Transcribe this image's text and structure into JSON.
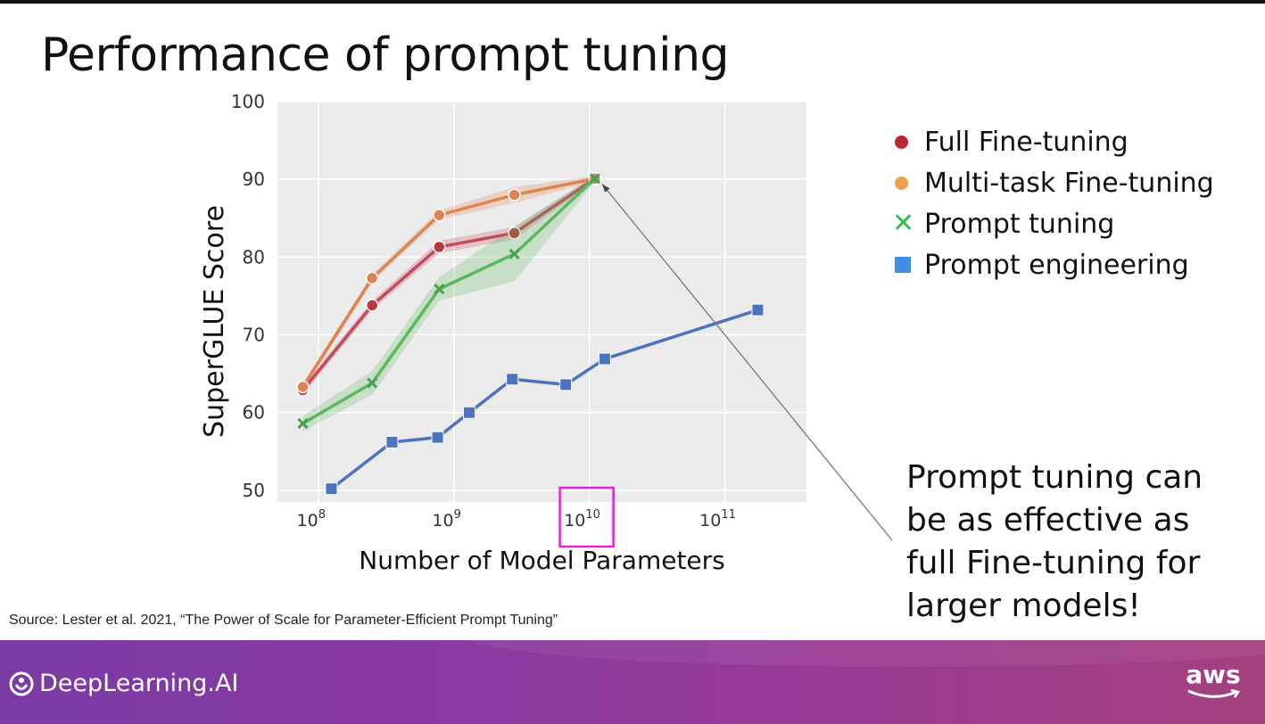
{
  "slide": {
    "title": "Performance of prompt tuning",
    "source": "Source:  Lester et al. 2021, “The Power of Scale for Parameter-Efficient Prompt Tuning”",
    "callout": "Prompt tuning can be as effective as full Fine-tuning for larger models!"
  },
  "footer": {
    "brand": "DeepLearning.AI",
    "aws": "aws"
  },
  "legend": [
    {
      "name": "Full Fine-tuning",
      "marker": "circle",
      "color": "#b8272f"
    },
    {
      "name": "Multi-task Fine-tuning",
      "marker": "circle",
      "color": "#f0a04b"
    },
    {
      "name": "Prompt tuning",
      "marker": "x",
      "color": "#2ebd4f"
    },
    {
      "name": "Prompt engineering",
      "marker": "square",
      "color": "#3d8ee6"
    }
  ],
  "chart_data": {
    "type": "line",
    "xlabel": "Number of Model Parameters",
    "ylabel": "SuperGLUE Score",
    "x_scale": "log",
    "xlim": [
      50000000,
      400000000000
    ],
    "ylim": [
      48.5,
      100
    ],
    "yticks": [
      50,
      60,
      70,
      80,
      90,
      100
    ],
    "xticks": [
      {
        "value": 100000000,
        "base": "10",
        "exp": "8"
      },
      {
        "value": 1000000000,
        "base": "10",
        "exp": "9"
      },
      {
        "value": 10000000000,
        "base": "10",
        "exp": "10"
      },
      {
        "value": 100000000000,
        "base": "10",
        "exp": "11"
      }
    ],
    "highlight_tick": 10000000000,
    "grid": true,
    "series": [
      {
        "name": "Full Fine-tuning",
        "marker": "circle",
        "line_color": "#c24a5a",
        "marker_color": "#b8383f",
        "x": [
          77000000,
          250000000,
          780000000,
          2800000000,
          11000000000
        ],
        "y": [
          62.9,
          73.8,
          81.3,
          83.1,
          90.1
        ],
        "band": [
          0.6,
          0.6,
          0.8,
          0.8,
          0.4
        ]
      },
      {
        "name": "Multi-task Fine-tuning",
        "marker": "circle",
        "line_color": "#de8451",
        "marker_color": "#de8451",
        "x": [
          77000000,
          250000000,
          780000000,
          2800000000,
          11000000000
        ],
        "y": [
          63.3,
          77.3,
          85.4,
          88.0,
          90.1
        ],
        "band": [
          0.5,
          0.5,
          0.6,
          1.0,
          0.4
        ]
      },
      {
        "name": "Prompt tuning",
        "marker": "x",
        "line_color": "#5cb85c",
        "marker_color": "#4a9f55",
        "x": [
          77000000,
          250000000,
          780000000,
          2800000000,
          11000000000
        ],
        "y": [
          58.6,
          63.8,
          75.9,
          80.4,
          90.1
        ],
        "band": [
          1.0,
          1.5,
          1.5,
          3.5,
          0.4
        ]
      },
      {
        "name": "Prompt engineering",
        "marker": "square",
        "line_color": "#4b73c0",
        "marker_color": "#4b73c0",
        "x": [
          125000000,
          350000000,
          760000000,
          1300000000,
          2700000000,
          6700000000,
          13000000000,
          175000000000
        ],
        "y": [
          50.2,
          56.2,
          56.8,
          60.0,
          64.3,
          63.6,
          66.9,
          73.2
        ],
        "band": [
          0,
          0,
          0,
          0,
          0,
          0,
          0,
          0
        ]
      }
    ],
    "annotation": {
      "text": "",
      "target_x": 11000000000,
      "target_y": 90.1
    }
  }
}
